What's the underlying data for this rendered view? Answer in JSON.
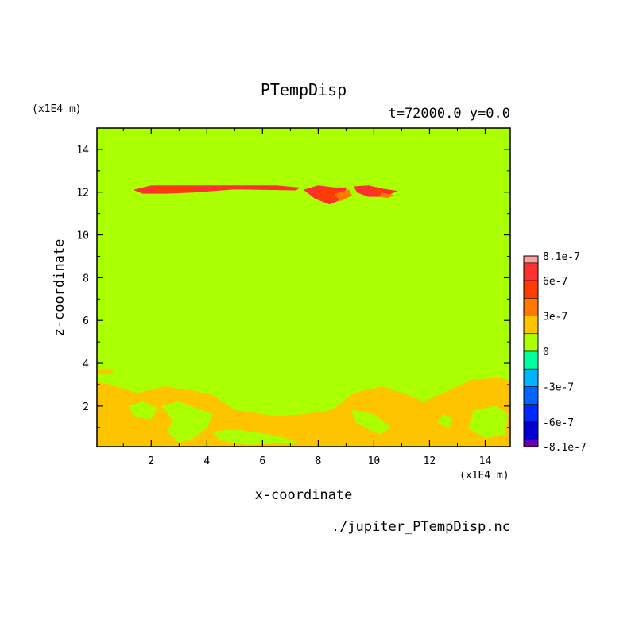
{
  "chart_data": {
    "type": "heatmap",
    "title": "PTempDisp",
    "subtitle": "t=72000.0 y=0.0",
    "xlabel": "x-coordinate",
    "ylabel": "z-coordinate",
    "x_unit": "(x1E4 m)",
    "y_unit": "(x1E4 m)",
    "xlim": [
      0.05,
      14.9
    ],
    "ylim": [
      0.1,
      15
    ],
    "x_ticks": [
      "2",
      "4",
      "6",
      "8",
      "10",
      "12",
      "14"
    ],
    "y_ticks": [
      "2",
      "4",
      "6",
      "8",
      "10",
      "12",
      "14"
    ],
    "background_level": 0,
    "colorbar": {
      "labels": [
        "8.1e-7",
        "6e-7",
        "3e-7",
        "0",
        "-3e-7",
        "-6e-7",
        "-8.1e-7"
      ],
      "bands": [
        {
          "from": 7.5e-07,
          "to": 8.1e-07,
          "color": "#ff9fa0"
        },
        {
          "from": 6e-07,
          "to": 7.5e-07,
          "color": "#ff3030"
        },
        {
          "from": 4.5e-07,
          "to": 6e-07,
          "color": "#ff3c00"
        },
        {
          "from": 3e-07,
          "to": 4.5e-07,
          "color": "#ff7800"
        },
        {
          "from": 1.5e-07,
          "to": 3e-07,
          "color": "#ffc400"
        },
        {
          "from": 0.0,
          "to": 1.5e-07,
          "color": "#aaff00"
        },
        {
          "from": -1.5e-07,
          "to": 0.0,
          "color": "#00ffa0"
        },
        {
          "from": -3e-07,
          "to": -1.5e-07,
          "color": "#00b4ff"
        },
        {
          "from": -4.5e-07,
          "to": -3e-07,
          "color": "#0064ff"
        },
        {
          "from": -6e-07,
          "to": -4.5e-07,
          "color": "#0028ff"
        },
        {
          "from": -7.5e-07,
          "to": -6e-07,
          "color": "#0000d2"
        },
        {
          "from": -8.1e-07,
          "to": -7.5e-07,
          "color": "#6400b4"
        }
      ]
    },
    "regions": [
      {
        "level": 3e-07,
        "color": "#ffc400",
        "points": [
          [
            0.05,
            3.1
          ],
          [
            0.5,
            3.0
          ],
          [
            1.5,
            2.6
          ],
          [
            2.5,
            2.9
          ],
          [
            3.5,
            2.7
          ],
          [
            4.2,
            2.5
          ],
          [
            5.0,
            1.8
          ],
          [
            6.5,
            1.5
          ],
          [
            7.5,
            1.6
          ],
          [
            8.5,
            1.8
          ],
          [
            9.3,
            2.6
          ],
          [
            10.3,
            2.9
          ],
          [
            11.0,
            2.6
          ],
          [
            11.8,
            2.2
          ],
          [
            12.5,
            2.6
          ],
          [
            13.5,
            3.2
          ],
          [
            14.4,
            3.3
          ],
          [
            14.9,
            3.2
          ],
          [
            14.9,
            0.1
          ],
          [
            0.05,
            0.1
          ]
        ]
      },
      {
        "level": 3e-07,
        "color": "#ffc400",
        "points": [
          [
            0.05,
            3.7
          ],
          [
            0.6,
            3.7
          ],
          [
            0.6,
            3.55
          ],
          [
            0.05,
            3.55
          ]
        ]
      },
      {
        "level": 0,
        "color": "#aaff00",
        "points": [
          [
            1.2,
            2.0
          ],
          [
            1.7,
            2.2
          ],
          [
            2.2,
            1.9
          ],
          [
            2.0,
            1.4
          ],
          [
            1.4,
            1.5
          ]
        ]
      },
      {
        "level": 0,
        "color": "#aaff00",
        "points": [
          [
            2.4,
            2.0
          ],
          [
            3.0,
            2.2
          ],
          [
            3.6,
            1.9
          ],
          [
            4.2,
            1.6
          ],
          [
            4.0,
            1.0
          ],
          [
            3.5,
            0.5
          ],
          [
            3.0,
            0.3
          ],
          [
            2.6,
            0.8
          ],
          [
            2.8,
            1.3
          ]
        ]
      },
      {
        "level": 0,
        "color": "#aaff00",
        "points": [
          [
            4.2,
            0.8
          ],
          [
            5.0,
            0.9
          ],
          [
            6.5,
            0.6
          ],
          [
            7.2,
            0.3
          ],
          [
            5.5,
            0.2
          ],
          [
            4.5,
            0.4
          ]
        ]
      },
      {
        "level": 0,
        "color": "#aaff00",
        "points": [
          [
            9.2,
            1.8
          ],
          [
            10.0,
            1.6
          ],
          [
            10.6,
            1.0
          ],
          [
            10.2,
            0.7
          ],
          [
            9.4,
            1.2
          ]
        ]
      },
      {
        "level": 0,
        "color": "#aaff00",
        "points": [
          [
            12.5,
            1.6
          ],
          [
            12.8,
            1.4
          ],
          [
            12.7,
            1.0
          ],
          [
            12.3,
            1.2
          ]
        ]
      },
      {
        "level": 0,
        "color": "#aaff00",
        "points": [
          [
            13.6,
            1.8
          ],
          [
            14.4,
            2.0
          ],
          [
            14.8,
            1.6
          ],
          [
            14.7,
            0.7
          ],
          [
            14.0,
            0.5
          ],
          [
            13.4,
            1.0
          ]
        ]
      },
      {
        "level": 6e-07,
        "color": "#ff3030",
        "points": [
          [
            1.4,
            12.1
          ],
          [
            2.0,
            12.3
          ],
          [
            4.5,
            12.3
          ],
          [
            6.5,
            12.3
          ],
          [
            7.3,
            12.2
          ],
          [
            7.2,
            12.1
          ],
          [
            5.0,
            12.15
          ],
          [
            3.5,
            12.0
          ],
          [
            2.5,
            11.95
          ],
          [
            1.7,
            11.95
          ]
        ]
      },
      {
        "level": 6e-07,
        "color": "#ff3030",
        "points": [
          [
            7.5,
            12.1
          ],
          [
            8.0,
            12.3
          ],
          [
            8.6,
            12.2
          ],
          [
            9.0,
            12.2
          ],
          [
            8.9,
            11.7
          ],
          [
            8.4,
            11.45
          ],
          [
            7.9,
            11.7
          ]
        ]
      },
      {
        "level": 6e-07,
        "color": "#ff3030",
        "points": [
          [
            9.3,
            12.25
          ],
          [
            9.8,
            12.3
          ],
          [
            10.3,
            12.15
          ],
          [
            10.8,
            12.05
          ],
          [
            10.4,
            11.8
          ],
          [
            9.8,
            11.8
          ],
          [
            9.4,
            12.0
          ]
        ]
      },
      {
        "level": 4.5e-07,
        "color": "#ff3c00",
        "points": [
          [
            2.0,
            12.2
          ],
          [
            2.8,
            12.25
          ],
          [
            3.6,
            12.2
          ],
          [
            3.2,
            12.0
          ],
          [
            2.4,
            12.0
          ]
        ]
      },
      {
        "level": 4.5e-07,
        "color": "#ff3c00",
        "points": [
          [
            8.0,
            12.1
          ],
          [
            8.5,
            12.15
          ],
          [
            8.8,
            11.9
          ],
          [
            8.4,
            11.6
          ],
          [
            8.0,
            11.8
          ]
        ]
      },
      {
        "level": 4.5e-07,
        "color": "#ff3c00",
        "points": [
          [
            9.9,
            12.15
          ],
          [
            10.4,
            12.05
          ],
          [
            10.1,
            11.95
          ]
        ]
      },
      {
        "level": 3e-07,
        "color": "#ff7800",
        "points": [
          [
            8.6,
            11.9
          ],
          [
            9.1,
            12.1
          ],
          [
            9.2,
            11.85
          ],
          [
            8.8,
            11.6
          ]
        ]
      },
      {
        "level": 3e-07,
        "color": "#ff7800",
        "points": [
          [
            10.3,
            11.95
          ],
          [
            10.7,
            11.85
          ],
          [
            10.5,
            11.75
          ],
          [
            10.2,
            11.8
          ]
        ]
      }
    ],
    "footer": "./jupiter_PTempDisp.nc"
  }
}
